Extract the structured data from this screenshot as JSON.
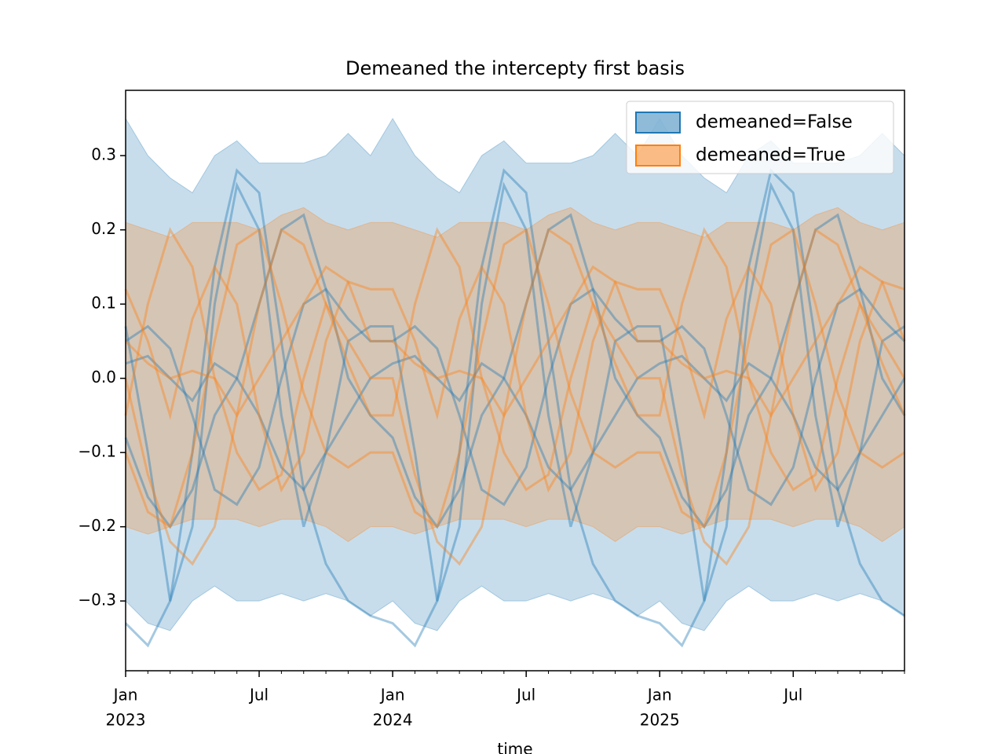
{
  "chart_data": {
    "type": "band-lines",
    "title": "Demeaned the intercepty first basis",
    "xlabel": "time",
    "x": [
      "2023-01",
      "2023-02",
      "2023-03",
      "2023-04",
      "2023-05",
      "2023-06",
      "2023-07",
      "2023-08",
      "2023-09",
      "2023-10",
      "2023-11",
      "2023-12",
      "2024-01",
      "2024-02",
      "2024-03",
      "2024-04",
      "2024-05",
      "2024-06",
      "2024-07",
      "2024-08",
      "2024-09",
      "2024-10",
      "2024-11",
      "2024-12",
      "2025-01",
      "2025-02",
      "2025-03",
      "2025-04",
      "2025-05",
      "2025-06",
      "2025-07",
      "2025-08",
      "2025-09",
      "2025-10",
      "2025-11",
      "2025-12"
    ],
    "xlim": [
      "2023-01",
      "2025-12"
    ],
    "xticks": [
      {
        "value": "2023-01",
        "label": "Jan",
        "year": "2023"
      },
      {
        "value": "2023-07",
        "label": "Jul"
      },
      {
        "value": "2024-01",
        "label": "Jan",
        "year": "2024"
      },
      {
        "value": "2024-07",
        "label": "Jul"
      },
      {
        "value": "2025-01",
        "label": "Jan",
        "year": "2025"
      },
      {
        "value": "2025-07",
        "label": "Jul"
      }
    ],
    "ylim": [
      -0.394,
      0.388
    ],
    "yticks": [
      {
        "value": -0.3,
        "label": "−0.3"
      },
      {
        "value": -0.2,
        "label": "−0.2"
      },
      {
        "value": -0.1,
        "label": "−0.1"
      },
      {
        "value": 0,
        "label": "0.0"
      },
      0.1,
      0.2,
      0.3
    ],
    "legend": "upper right",
    "series": [
      {
        "name": "demeaned=False",
        "color": "#1f77b4",
        "upper": [
          0.35,
          0.3,
          0.27,
          0.25,
          0.3,
          0.32,
          0.29,
          0.29,
          0.29,
          0.3,
          0.33,
          0.3,
          0.35,
          0.3,
          0.27,
          0.25,
          0.3,
          0.32,
          0.29,
          0.29,
          0.29,
          0.3,
          0.33,
          0.3,
          0.35,
          0.3,
          0.27,
          0.25,
          0.3,
          0.32,
          0.29,
          0.29,
          0.29,
          0.3,
          0.33,
          0.3
        ],
        "lower": [
          -0.3,
          -0.33,
          -0.34,
          -0.3,
          -0.28,
          -0.3,
          -0.3,
          -0.29,
          -0.3,
          -0.29,
          -0.3,
          -0.32,
          -0.3,
          -0.33,
          -0.34,
          -0.3,
          -0.28,
          -0.3,
          -0.3,
          -0.29,
          -0.3,
          -0.29,
          -0.3,
          -0.32,
          -0.3,
          -0.33,
          -0.34,
          -0.3,
          -0.28,
          -0.3,
          -0.3,
          -0.29,
          -0.3,
          -0.29,
          -0.3,
          -0.32
        ],
        "lines": [
          [
            -0.33,
            -0.36,
            -0.3,
            -0.1,
            0.15,
            0.28,
            0.25,
            0.05,
            -0.15,
            -0.25,
            -0.3,
            -0.32,
            -0.33,
            -0.36,
            -0.3,
            -0.1,
            0.15,
            0.28,
            0.25,
            0.05,
            -0.15,
            -0.25,
            -0.3,
            -0.32,
            -0.33,
            -0.36,
            -0.3,
            -0.1,
            0.15,
            0.28,
            0.25,
            0.05,
            -0.15,
            -0.25,
            -0.3,
            -0.32
          ],
          [
            0.07,
            -0.1,
            -0.3,
            -0.2,
            0.1,
            0.26,
            0.2,
            -0.05,
            -0.2,
            -0.1,
            0.05,
            0.07,
            0.07,
            -0.1,
            -0.3,
            -0.2,
            0.1,
            0.26,
            0.2,
            -0.05,
            -0.2,
            -0.1,
            0.05,
            0.07,
            0.07,
            -0.1,
            -0.3,
            -0.2,
            0.1,
            0.26,
            0.2,
            -0.05,
            -0.2,
            -0.1,
            0.05,
            0.07
          ],
          [
            0.05,
            0.07,
            0.04,
            -0.05,
            -0.15,
            -0.17,
            -0.12,
            0.0,
            0.1,
            0.12,
            0.08,
            0.05,
            0.05,
            0.07,
            0.04,
            -0.05,
            -0.15,
            -0.17,
            -0.12,
            0.0,
            0.1,
            0.12,
            0.08,
            0.05,
            0.05,
            0.07,
            0.04,
            -0.05,
            -0.15,
            -0.17,
            -0.12,
            0.0,
            0.1,
            0.12,
            0.08,
            0.05
          ],
          [
            -0.08,
            -0.16,
            -0.2,
            -0.15,
            -0.05,
            0.0,
            0.1,
            0.2,
            0.22,
            0.12,
            0.0,
            -0.05,
            -0.08,
            -0.16,
            -0.2,
            -0.15,
            -0.05,
            0.0,
            0.1,
            0.2,
            0.22,
            0.12,
            0.0,
            -0.05,
            -0.08,
            -0.16,
            -0.2,
            -0.15,
            -0.05,
            0.0,
            0.1,
            0.2,
            0.22,
            0.12,
            0.0,
            -0.05
          ],
          [
            0.02,
            0.03,
            0.0,
            -0.03,
            0.02,
            0.0,
            -0.05,
            -0.12,
            -0.15,
            -0.1,
            -0.05,
            0.0,
            0.02,
            0.03,
            0.0,
            -0.03,
            0.02,
            0.0,
            -0.05,
            -0.12,
            -0.15,
            -0.1,
            -0.05,
            0.0,
            0.02,
            0.03,
            0.0,
            -0.03,
            0.02,
            0.0,
            -0.05,
            -0.12,
            -0.15,
            -0.1,
            -0.05,
            0.0
          ]
        ]
      },
      {
        "name": "demeaned=True",
        "color": "#ff7f0e",
        "upper": [
          0.21,
          0.2,
          0.19,
          0.21,
          0.21,
          0.21,
          0.2,
          0.22,
          0.23,
          0.21,
          0.2,
          0.21,
          0.21,
          0.2,
          0.19,
          0.21,
          0.21,
          0.21,
          0.2,
          0.22,
          0.23,
          0.21,
          0.2,
          0.21,
          0.21,
          0.2,
          0.19,
          0.21,
          0.21,
          0.21,
          0.2,
          0.22,
          0.23,
          0.21,
          0.2,
          0.21
        ],
        "lower": [
          -0.2,
          -0.21,
          -0.2,
          -0.19,
          -0.19,
          -0.19,
          -0.2,
          -0.19,
          -0.19,
          -0.2,
          -0.22,
          -0.2,
          -0.2,
          -0.21,
          -0.2,
          -0.19,
          -0.19,
          -0.19,
          -0.2,
          -0.19,
          -0.19,
          -0.2,
          -0.22,
          -0.2,
          -0.2,
          -0.21,
          -0.2,
          -0.19,
          -0.19,
          -0.19,
          -0.2,
          -0.19,
          -0.19,
          -0.2,
          -0.22,
          -0.2
        ],
        "lines": [
          [
            0.12,
            0.05,
            -0.05,
            0.08,
            0.15,
            0.1,
            -0.05,
            -0.15,
            -0.1,
            0.05,
            0.13,
            0.12,
            0.12,
            0.05,
            -0.05,
            0.08,
            0.15,
            0.1,
            -0.05,
            -0.15,
            -0.1,
            0.05,
            0.13,
            0.12,
            0.12,
            0.05,
            -0.05,
            0.08,
            0.15,
            0.1,
            -0.05,
            -0.15,
            -0.1,
            0.05,
            0.13,
            0.12
          ],
          [
            -0.1,
            -0.18,
            -0.2,
            -0.1,
            0.05,
            0.18,
            0.2,
            0.1,
            -0.02,
            -0.1,
            -0.12,
            -0.1,
            -0.1,
            -0.18,
            -0.2,
            -0.1,
            0.05,
            0.18,
            0.2,
            0.1,
            -0.02,
            -0.1,
            -0.12,
            -0.1,
            -0.1,
            -0.18,
            -0.2,
            -0.1,
            0.05,
            0.18,
            0.2,
            0.1,
            -0.02,
            -0.1,
            -0.12,
            -0.1
          ],
          [
            0.0,
            -0.13,
            -0.22,
            -0.25,
            -0.2,
            -0.05,
            0.1,
            0.2,
            0.18,
            0.1,
            0.05,
            0.0,
            0.0,
            -0.13,
            -0.22,
            -0.25,
            -0.2,
            -0.05,
            0.1,
            0.2,
            0.18,
            0.1,
            0.05,
            0.0,
            0.0,
            -0.13,
            -0.22,
            -0.25,
            -0.2,
            -0.05,
            0.1,
            0.2,
            0.18,
            0.1,
            0.05,
            0.0
          ],
          [
            0.05,
            0.02,
            0.0,
            0.01,
            0.0,
            -0.05,
            0.0,
            0.05,
            0.1,
            0.15,
            0.13,
            0.05,
            0.05,
            0.02,
            0.0,
            0.01,
            0.0,
            -0.05,
            0.0,
            0.05,
            0.1,
            0.15,
            0.13,
            0.05,
            0.05,
            0.02,
            0.0,
            0.01,
            0.0,
            -0.05,
            0.0,
            0.05,
            0.1,
            0.15,
            0.13,
            0.05
          ],
          [
            -0.05,
            0.1,
            0.2,
            0.15,
            0.0,
            -0.1,
            -0.15,
            -0.13,
            0.0,
            0.1,
            0.02,
            -0.05,
            -0.05,
            0.1,
            0.2,
            0.15,
            0.0,
            -0.1,
            -0.15,
            -0.13,
            0.0,
            0.1,
            0.02,
            -0.05,
            -0.05,
            0.1,
            0.2,
            0.15,
            0.0,
            -0.1,
            -0.15,
            -0.13,
            0.0,
            0.1,
            0.02,
            -0.05
          ]
        ]
      }
    ]
  }
}
